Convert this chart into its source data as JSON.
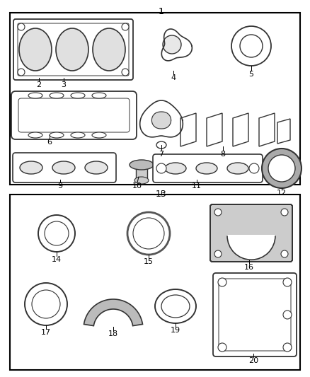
{
  "bg_color": "#ffffff",
  "border_color": "#000000",
  "line_color": "#333333",
  "figsize": [
    4.38,
    5.33
  ],
  "dpi": 100
}
